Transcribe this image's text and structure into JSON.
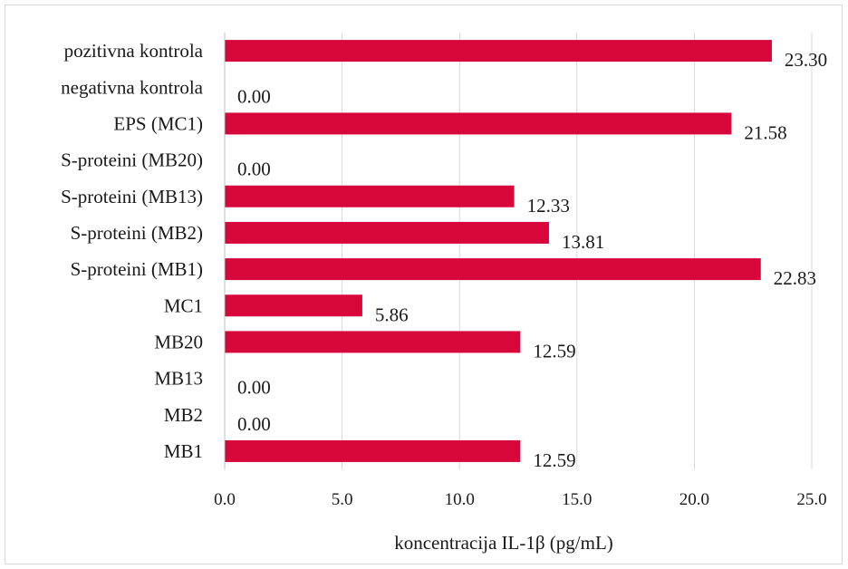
{
  "chart_data": {
    "type": "bar",
    "orientation": "horizontal",
    "title": "",
    "xlabel": "koncentracija IL-1β (pg/mL)",
    "ylabel": "",
    "xlim": [
      0,
      25
    ],
    "ticks": [
      "0.0",
      "5.0",
      "10.0",
      "15.0",
      "20.0",
      "25.0"
    ],
    "tick_values": [
      0,
      5,
      10,
      15,
      20,
      25
    ],
    "grid": "vertical",
    "legend": "none",
    "bar_color": "#d7063b",
    "categories": [
      "pozitivna kontrola",
      "negativna kontrola",
      "EPS (MC1)",
      "S-proteini (MB20)",
      "S-proteini (MB13)",
      "S-proteini (MB2)",
      "S-proteini (MB1)",
      "MC1",
      "MB20",
      "MB13",
      "MB2",
      "MB1"
    ],
    "values": [
      23.3,
      0.0,
      21.58,
      0.0,
      12.33,
      13.81,
      22.83,
      5.86,
      12.59,
      0.0,
      0.0,
      12.59
    ],
    "value_labels": [
      "23.30",
      "0.00",
      "21.58",
      "0.00",
      "12.33",
      "13.81",
      "22.83",
      "5.86",
      "12.59",
      "0.00",
      "0.00",
      "12.59"
    ]
  }
}
